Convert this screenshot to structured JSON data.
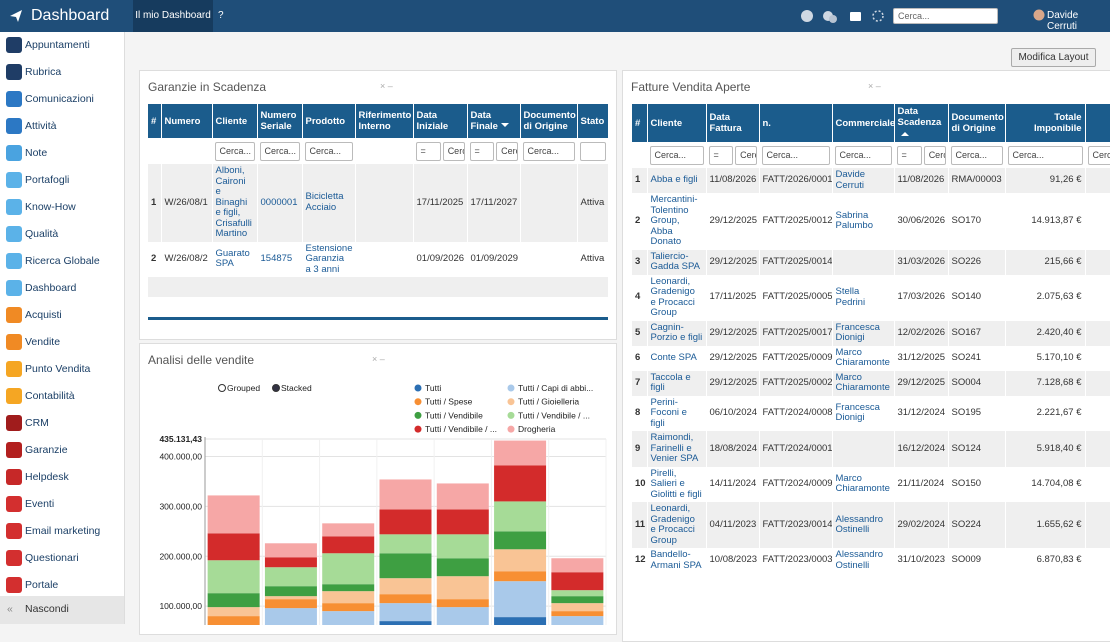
{
  "header": {
    "title": "Dashboard",
    "tab": "Il mio Dashboard",
    "help": "?",
    "search_placeholder": "Cerca...",
    "user": "Davide Cerruti"
  },
  "sidebar": {
    "items": [
      "Appuntamenti",
      "Rubrica",
      "Comunicazioni",
      "Attività",
      "Note",
      "Portafogli",
      "Know-How",
      "Qualità",
      "Ricerca Globale",
      "Dashboard",
      "Acquisti",
      "Vendite",
      "Punto Vendita",
      "Contabilità",
      "CRM",
      "Garanzie",
      "Helpdesk",
      "Eventi",
      "Email marketing",
      "Questionari",
      "Portale"
    ],
    "hide": "Nascondi"
  },
  "toolbar": {
    "modify_layout": "Modifica Layout"
  },
  "widgets": {
    "guarantees": {
      "title": "Garanzie in Scadenza",
      "filter_placeholder": "Cerca...",
      "filter_operator": "=",
      "columns": [
        "#",
        "Numero",
        "Cliente",
        "Numero Seriale",
        "Prodotto",
        "Riferimento Interno",
        "Data Iniziale",
        "Data Finale",
        "Documento di Origine",
        "Stato"
      ],
      "rows": [
        [
          1,
          "W/26/08/1",
          "Alboni, Caironi e Binaghi e figli, Crisafulli Martino",
          "0000001",
          "Bicicletta Acciaio",
          null,
          "17/11/2025",
          "17/11/2027",
          null,
          "Attiva"
        ],
        [
          2,
          "W/26/08/2",
          "Guarato SPA",
          "154875",
          "Estensione Garanzia a 3 anni",
          null,
          "01/09/2026",
          "01/09/2029",
          null,
          "Attiva"
        ]
      ]
    },
    "invoices": {
      "title": "Fatture Vendita Aperte",
      "filter_placeholder": "Cerca...",
      "filter_operator": "=",
      "columns": [
        "#",
        "Cliente",
        "Data Fattura",
        "n.",
        "Commerciale",
        "Data Scadenza",
        "Documento di Origine",
        "Totale Imponibile"
      ],
      "rows": [
        [
          1,
          "Abba e figli",
          "11/08/2026",
          "FATT/2026/0001",
          "Davide Cerruti",
          "11/08/2026",
          "RMA/00003",
          "91,26 €"
        ],
        [
          2,
          "Mercantini-Tolentino Group, Abba Donato",
          "29/12/2025",
          "FATT/2025/0012",
          "Sabrina Palumbo",
          "30/06/2026",
          "SO170",
          "14.913,87 €"
        ],
        [
          3,
          "Taliercio-Gadda SPA",
          "29/12/2025",
          "FATT/2025/0014",
          null,
          "31/03/2026",
          "SO226",
          "215,66 €"
        ],
        [
          4,
          "Leonardi, Gradenigo e Procacci Group",
          "17/11/2025",
          "FATT/2025/0005",
          "Stella Pedrini",
          "17/03/2026",
          "SO140",
          "2.075,63 €"
        ],
        [
          5,
          "Cagnin-Porzio e figli",
          "29/12/2025",
          "FATT/2025/0017",
          "Francesca Dionigi",
          "12/02/2026",
          "SO167",
          "2.420,40 €"
        ],
        [
          6,
          "Conte SPA",
          "29/12/2025",
          "FATT/2025/0009",
          "Marco Chiaramonte",
          "31/12/2025",
          "SO241",
          "5.170,10 €"
        ],
        [
          7,
          "Taccola e figli",
          "29/12/2025",
          "FATT/2025/0002",
          "Marco Chiaramonte",
          "29/12/2025",
          "SO004",
          "7.128,68 €"
        ],
        [
          8,
          "Perini-Foconi e figli",
          "06/10/2024",
          "FATT/2024/0008",
          "Francesca Dionigi",
          "31/12/2024",
          "SO195",
          "2.221,67 €"
        ],
        [
          9,
          "Raimondi, Farinelli e Venier SPA",
          "18/08/2024",
          "FATT/2024/0001",
          null,
          "16/12/2024",
          "SO124",
          "5.918,40 €"
        ],
        [
          10,
          "Pirelli, Salieri e Giolitti e figli",
          "14/11/2024",
          "FATT/2024/0009",
          "Marco Chiaramonte",
          "21/11/2024",
          "SO150",
          "14.704,08 €"
        ],
        [
          11,
          "Leonardi, Gradenigo e Procacci Group",
          "04/11/2023",
          "FATT/2023/0014",
          "Alessandro Ostinelli",
          "29/02/2024",
          "SO224",
          "1.655,62 €"
        ],
        [
          12,
          "Bandello-Armani SPA",
          "10/08/2023",
          "FATT/2023/0003",
          "Alessandro Ostinelli",
          "31/10/2023",
          "SO009",
          "6.870,83 €"
        ]
      ]
    },
    "sales": {
      "title": "Analisi delle vendite",
      "modes": [
        "Grouped",
        "Stacked"
      ]
    }
  },
  "chart_data": {
    "type": "bar",
    "stacked": true,
    "categories": [
      null,
      null,
      null,
      null,
      null,
      null,
      null
    ],
    "ylim": [
      0,
      435131.43
    ],
    "yticks": [
      {
        "value": 100000,
        "label": "100.000,00"
      },
      {
        "value": 200000,
        "label": "200.000,00"
      },
      {
        "value": 300000,
        "label": "300.000,00"
      },
      {
        "value": 400000,
        "label": "400.000,00"
      },
      {
        "value": 435131.43,
        "label": "435.131,43"
      }
    ],
    "grid": true,
    "series": [
      {
        "name": "Tutti",
        "color": "#2b6fb3",
        "values": [
          10000,
          10000,
          10000,
          70000,
          58000,
          78000,
          30000
        ]
      },
      {
        "name": "Tutti / Capi di abbi...",
        "color": "#a9c9ea",
        "values": [
          52000,
          86000,
          80000,
          36000,
          40000,
          72000,
          50000
        ]
      },
      {
        "name": "Tutti / Spese",
        "color": "#f78f33",
        "values": [
          18000,
          18000,
          16000,
          18000,
          16000,
          20000,
          10000
        ]
      },
      {
        "name": "Tutti / Gioielleria",
        "color": "#f9c495",
        "values": [
          18000,
          6000,
          24000,
          32000,
          46000,
          44000,
          16000
        ]
      },
      {
        "name": "Tutti / Vendibile",
        "color": "#3e9f42",
        "values": [
          28000,
          20000,
          14000,
          50000,
          36000,
          36000,
          14000
        ]
      },
      {
        "name": "Tutti / Vendibile / ...",
        "color": "#a6db97",
        "values": [
          66000,
          38000,
          62000,
          38000,
          48000,
          60000,
          12000
        ]
      },
      {
        "name": "Tutti / Vendibile / ...",
        "color": "#d32b2b",
        "values": [
          54000,
          20000,
          34000,
          50000,
          50000,
          72000,
          36000
        ]
      },
      {
        "name": "Drogheria",
        "color": "#f6a7a6",
        "values": [
          76000,
          28000,
          26000,
          60000,
          52000,
          50000,
          28000
        ]
      }
    ]
  }
}
